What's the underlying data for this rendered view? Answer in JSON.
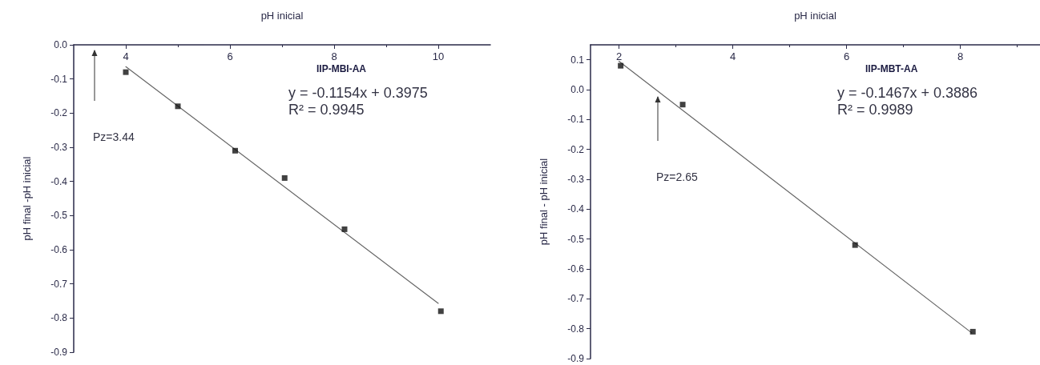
{
  "chart_data": [
    {
      "type": "scatter",
      "xlabel": "pH inicial",
      "ylabel": "pH final -pH inicial",
      "marker": "square",
      "grid": false,
      "xlim": [
        3,
        11
      ],
      "xticks": [
        4,
        6,
        8,
        10
      ],
      "ylim": [
        -0.9,
        0
      ],
      "yticks": [
        {
          "value": 0,
          "label": "0.0"
        },
        {
          "value": -0.1,
          "label": "-0.1"
        },
        {
          "value": -0.2,
          "label": "-0.2"
        },
        {
          "value": -0.3,
          "label": "-0.3"
        },
        {
          "value": -0.4,
          "label": "-0.4"
        },
        {
          "value": -0.5,
          "label": "-0.5"
        },
        {
          "value": -0.6,
          "label": "-0.6"
        },
        {
          "value": -0.7,
          "label": "-0.7"
        },
        {
          "value": -0.8,
          "label": "-0.8"
        },
        {
          "value": -0.9,
          "label": "-0.9"
        }
      ],
      "x": [
        4.0,
        5.0,
        6.1,
        7.05,
        8.2,
        10.05
      ],
      "series": [
        {
          "color": "#111111",
          "values": [
            -0.08,
            -0.18,
            -0.31,
            -0.39,
            -0.54,
            -0.78
          ]
        },
        {
          "type": "line",
          "color": "#666666",
          "marker": "none",
          "x": [
            4,
            10
          ],
          "values": [
            -0.064,
            -0.757
          ]
        }
      ],
      "annotations": [
        "IIP-MBI-AA",
        "y = -0.1154x + 0.3975",
        "R² = 0.9945",
        "Pz=3.44"
      ]
    },
    {
      "type": "scatter",
      "xlabel": "pH inicial",
      "ylabel": "pH final - pH inicial",
      "marker": "square",
      "grid": false,
      "xlim": [
        1.5,
        9.4
      ],
      "xticks": [
        2,
        4,
        6,
        8
      ],
      "ylim": [
        -0.9,
        0.15
      ],
      "yticks": [
        {
          "value": 0.1,
          "label": "0.1"
        },
        {
          "value": 0,
          "label": "0.0"
        },
        {
          "value": -0.1,
          "label": "-0.1"
        },
        {
          "value": -0.2,
          "label": "-0.2"
        },
        {
          "value": -0.3,
          "label": "-0.3"
        },
        {
          "value": -0.4,
          "label": "-0.4"
        },
        {
          "value": -0.5,
          "label": "-0.5"
        },
        {
          "value": -0.6,
          "label": "-0.6"
        },
        {
          "value": -0.7,
          "label": "-0.7"
        },
        {
          "value": -0.8,
          "label": "-0.8"
        },
        {
          "value": -0.9,
          "label": "-0.9"
        }
      ],
      "x": [
        2.03,
        3.12,
        6.15,
        8.22
      ],
      "series": [
        {
          "color": "#111111",
          "values": [
            0.08,
            -0.05,
            -0.52,
            -0.81
          ]
        },
        {
          "type": "line",
          "color": "#666666",
          "marker": "none",
          "x": [
            2,
            8.2
          ],
          "values": [
            0.095,
            -0.814
          ]
        }
      ],
      "annotations": [
        "IIP-MBT-AA",
        "y = -0.1467x + 0.3886",
        "R² = 0.9989",
        "Pz=2.65"
      ]
    }
  ]
}
